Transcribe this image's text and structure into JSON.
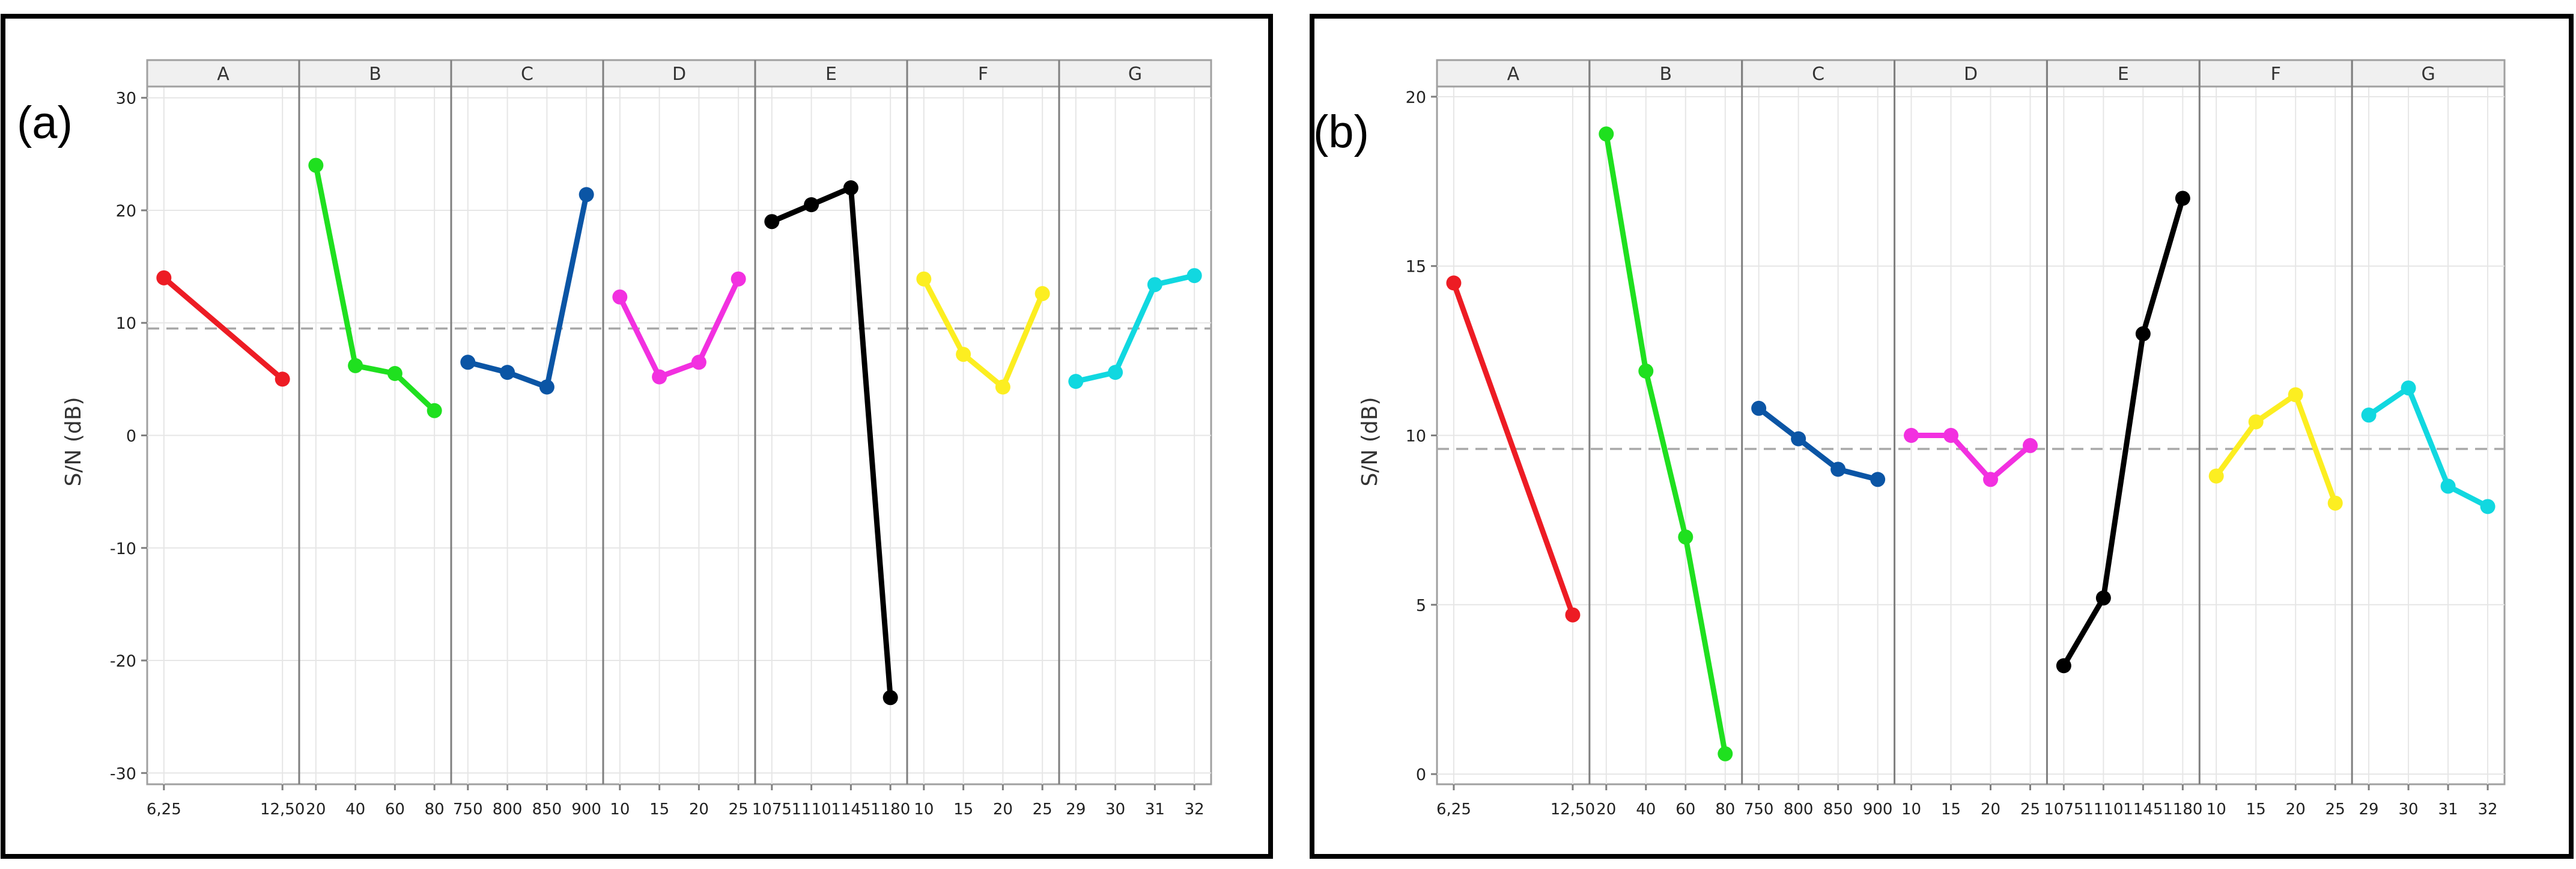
{
  "chart_data": [
    {
      "type": "line",
      "panel_label": "(a)",
      "ylabel": "S/N (dB)",
      "ylim": [
        -31,
        31
      ],
      "yticks": [
        30,
        20,
        10,
        0,
        -10,
        -20,
        -30
      ],
      "mean_line": 9.5,
      "grid": true,
      "factors": [
        {
          "name": "A",
          "levels": [
            "6,25",
            "12,50"
          ],
          "values": [
            14.0,
            5.0
          ],
          "color": "#ed1c24"
        },
        {
          "name": "B",
          "levels": [
            "20",
            "40",
            "60",
            "80"
          ],
          "values": [
            24.0,
            6.2,
            5.5,
            2.2
          ],
          "color": "#1fe01f"
        },
        {
          "name": "C",
          "levels": [
            "750",
            "800",
            "850",
            "900"
          ],
          "values": [
            6.5,
            5.6,
            4.3,
            21.4
          ],
          "color": "#0b55a5"
        },
        {
          "name": "D",
          "levels": [
            "10",
            "15",
            "20",
            "25"
          ],
          "values": [
            12.3,
            5.2,
            6.5,
            13.9
          ],
          "color": "#f230e0"
        },
        {
          "name": "E",
          "levels": [
            "1075",
            "1110",
            "1145",
            "1180"
          ],
          "values": [
            19.0,
            20.5,
            22.0,
            -23.3
          ],
          "color": "#000000"
        },
        {
          "name": "F",
          "levels": [
            "10",
            "15",
            "20",
            "25"
          ],
          "values": [
            13.9,
            7.2,
            4.3,
            12.6
          ],
          "color": "#fcee21"
        },
        {
          "name": "G",
          "levels": [
            "29",
            "30",
            "31",
            "32"
          ],
          "values": [
            4.8,
            5.6,
            13.4,
            14.2
          ],
          "color": "#11d8e0"
        }
      ]
    },
    {
      "type": "line",
      "panel_label": "(b)",
      "ylabel": "S/N (dB)",
      "ylim": [
        -0.3,
        20.3
      ],
      "yticks": [
        20,
        15,
        10,
        5,
        0
      ],
      "mean_line": 9.6,
      "grid": true,
      "factors": [
        {
          "name": "A",
          "levels": [
            "6,25",
            "12,50"
          ],
          "values": [
            14.5,
            4.7
          ],
          "color": "#ed1c24"
        },
        {
          "name": "B",
          "levels": [
            "20",
            "40",
            "60",
            "80"
          ],
          "values": [
            18.9,
            11.9,
            7.0,
            0.6
          ],
          "color": "#1fe01f"
        },
        {
          "name": "C",
          "levels": [
            "750",
            "800",
            "850",
            "900"
          ],
          "values": [
            10.8,
            9.9,
            9.0,
            8.7
          ],
          "color": "#0b55a5"
        },
        {
          "name": "D",
          "levels": [
            "10",
            "15",
            "20",
            "25"
          ],
          "values": [
            10.0,
            10.0,
            8.7,
            9.7
          ],
          "color": "#f230e0"
        },
        {
          "name": "E",
          "levels": [
            "1075",
            "1110",
            "1145",
            "1180"
          ],
          "values": [
            3.2,
            5.2,
            13.0,
            17.0
          ],
          "color": "#000000"
        },
        {
          "name": "F",
          "levels": [
            "10",
            "15",
            "20",
            "25"
          ],
          "values": [
            8.8,
            10.4,
            11.2,
            8.0
          ],
          "color": "#fcee21"
        },
        {
          "name": "G",
          "levels": [
            "29",
            "30",
            "31",
            "32"
          ],
          "values": [
            10.6,
            11.4,
            8.5,
            7.9
          ],
          "color": "#11d8e0"
        }
      ]
    }
  ]
}
